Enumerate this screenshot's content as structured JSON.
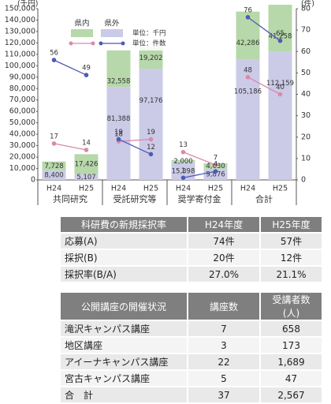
{
  "chart_data": {
    "type": "bar",
    "ylabel": "(千円)",
    "y2label": "(件)",
    "categories": [
      "H24",
      "H25",
      "H24",
      "H25",
      "H24",
      "H25",
      "H24",
      "H25"
    ],
    "groups": [
      "共同研究",
      "受託研究等",
      "奨学寄付金",
      "合計"
    ],
    "legend_units": [
      "単位：千円",
      "単位：件数"
    ],
    "series": [
      {
        "name": "県内",
        "color": "#b7d8aa",
        "values": [
          7728,
          17426,
          32558,
          19202,
          2000,
          4630,
          42286,
          41258
        ],
        "value_labels": [
          "7,728",
          "17,426",
          "32,558",
          "19,202",
          "2,000",
          "4,630",
          "42,286",
          "41,258"
        ]
      },
      {
        "name": "県外",
        "color": "#cbcbe8",
        "values": [
          8400,
          5107,
          81388,
          97176,
          15398,
          9876,
          105186,
          112159
        ],
        "value_labels": [
          "8,400",
          "5,107",
          "81,388",
          "97,176",
          "15,398",
          "9,876",
          "105,186",
          "112,159"
        ]
      },
      {
        "color": "#d98aa9",
        "axis": "y2",
        "values": [
          17,
          14,
          18,
          19,
          13,
          7,
          48,
          40
        ]
      },
      {
        "color": "#4d5bb5",
        "axis": "y2",
        "values": [
          56,
          49,
          19,
          12,
          1,
          4,
          76,
          65
        ]
      }
    ],
    "ylim": [
      0,
      150000
    ],
    "yticks": [
      0,
      {
        "value": 10000,
        "label": "10,000"
      },
      {
        "value": 20000,
        "label": "20,000"
      },
      {
        "value": 30000,
        "label": "30,000"
      },
      {
        "value": 40000,
        "label": "40,000"
      },
      {
        "value": 50000,
        "label": "50,000"
      },
      {
        "value": 60000,
        "label": "60,000"
      },
      {
        "value": 70000,
        "label": "70,000"
      },
      {
        "value": 80000,
        "label": "80,000"
      },
      {
        "value": 90000,
        "label": "90,000"
      },
      {
        "value": 100000,
        "label": "100,000"
      },
      {
        "value": 110000,
        "label": "110,000"
      },
      {
        "value": 120000,
        "label": "120,000"
      },
      {
        "value": 130000,
        "label": "130,000"
      },
      {
        "value": 140000,
        "label": "140,000"
      },
      {
        "value": 150000,
        "label": "150,000"
      }
    ],
    "y2lim": [
      0,
      80
    ],
    "y2ticks": [
      0,
      10,
      20,
      30,
      40,
      50,
      60,
      70,
      80
    ]
  },
  "tables": [
    {
      "header": [
        "科研費の新規採択率",
        "H24年度",
        "H25年度"
      ],
      "rows": [
        [
          "応募(A)",
          "74件",
          "57件"
        ],
        [
          "採択(B)",
          "20件",
          "12件"
        ],
        [
          "採択率(B/A)",
          "27.0%",
          "21.1%"
        ]
      ]
    },
    {
      "header": [
        "公開講座の開催状況",
        "講座数",
        "受講者数(人)"
      ],
      "rows": [
        [
          "滝沢キャンパス講座",
          "7",
          "658"
        ],
        [
          "地区講座",
          "3",
          "173"
        ],
        [
          "アイーナキャンパス講座",
          "22",
          "1,689"
        ],
        [
          "宮古キャンパス講座",
          "5",
          "47"
        ],
        [
          "合　計",
          "37",
          "2,567"
        ]
      ]
    }
  ]
}
